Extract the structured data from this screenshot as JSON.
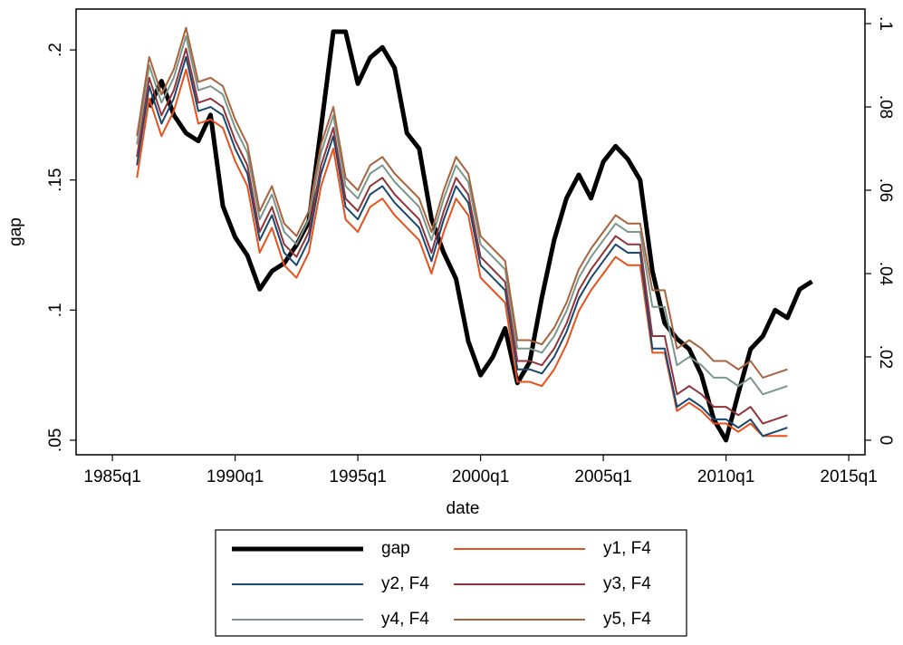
{
  "chart_data": {
    "type": "line",
    "x_label": "date",
    "y_label": "gap",
    "x": [
      1986,
      1986.5,
      1987,
      1987.5,
      1988,
      1988.5,
      1989,
      1989.5,
      1990,
      1990.5,
      1991,
      1991.5,
      1992,
      1992.5,
      1993,
      1993.5,
      1994,
      1994.5,
      1995,
      1995.5,
      1996,
      1996.5,
      1997,
      1997.5,
      1998,
      1998.5,
      1999,
      1999.5,
      2000,
      2000.5,
      2001,
      2001.5,
      2002,
      2002.5,
      2003,
      2003.5,
      2004,
      2004.5,
      2005,
      2005.5,
      2006,
      2006.5,
      2007,
      2007.5,
      2008,
      2008.5,
      2009,
      2009.5,
      2010,
      2010.5,
      2011,
      2011.5,
      2012,
      2012.5,
      2013,
      2013.5
    ],
    "series": [
      {
        "name": "gap",
        "color": "#000000",
        "width": 5,
        "values": [
          null,
          0.178,
          0.188,
          0.175,
          0.168,
          0.165,
          0.175,
          0.14,
          0.128,
          0.121,
          0.108,
          0.115,
          0.118,
          0.125,
          0.134,
          0.17,
          0.207,
          0.207,
          0.187,
          0.197,
          0.201,
          0.193,
          0.168,
          0.162,
          0.135,
          0.122,
          0.112,
          0.088,
          0.075,
          0.082,
          0.093,
          0.072,
          0.08,
          0.105,
          0.127,
          0.143,
          0.152,
          0.143,
          0.157,
          0.163,
          0.158,
          0.15,
          0.115,
          0.095,
          0.089,
          0.085,
          0.075,
          0.058,
          0.05,
          0.068,
          0.085,
          0.09,
          0.1,
          0.097,
          0.108,
          0.111
        ]
      },
      {
        "name": "y1, F4",
        "color": "#e8501c",
        "width": 2,
        "axis": "y2",
        "values": [
          0.063,
          0.082,
          0.073,
          0.079,
          0.089,
          0.076,
          0.077,
          0.075,
          0.067,
          0.061,
          0.045,
          0.051,
          0.042,
          0.039,
          0.045,
          0.061,
          0.07,
          0.053,
          0.05,
          0.056,
          0.058,
          0.054,
          0.051,
          0.048,
          0.04,
          0.05,
          0.058,
          0.054,
          0.039,
          0.036,
          0.033,
          0.014,
          0.014,
          0.013,
          0.017,
          0.023,
          0.031,
          0.036,
          0.04,
          0.044,
          0.042,
          0.042,
          0.021,
          0.021,
          0.007,
          0.009,
          0.007,
          0.004,
          0.004,
          0.002,
          0.004,
          0.001,
          0.001,
          0.001,
          null,
          null
        ]
      },
      {
        "name": "y2, F4",
        "color": "#1a476f",
        "width": 2,
        "axis": "y2",
        "values": [
          0.066,
          0.085,
          0.076,
          0.082,
          0.092,
          0.079,
          0.08,
          0.078,
          0.07,
          0.064,
          0.048,
          0.054,
          0.045,
          0.042,
          0.048,
          0.064,
          0.073,
          0.056,
          0.053,
          0.059,
          0.061,
          0.057,
          0.054,
          0.051,
          0.043,
          0.053,
          0.061,
          0.057,
          0.042,
          0.039,
          0.036,
          0.017,
          0.017,
          0.016,
          0.02,
          0.026,
          0.034,
          0.039,
          0.043,
          0.047,
          0.045,
          0.045,
          0.022,
          0.022,
          0.008,
          0.01,
          0.008,
          0.005,
          0.005,
          0.003,
          0.005,
          0.001,
          0.002,
          0.003,
          null,
          null
        ]
      },
      {
        "name": "y3, F4",
        "color": "#90353b",
        "width": 2,
        "axis": "y2",
        "values": [
          0.068,
          0.087,
          0.078,
          0.084,
          0.094,
          0.081,
          0.082,
          0.08,
          0.072,
          0.066,
          0.05,
          0.056,
          0.047,
          0.044,
          0.05,
          0.066,
          0.075,
          0.058,
          0.055,
          0.061,
          0.063,
          0.059,
          0.056,
          0.053,
          0.045,
          0.055,
          0.063,
          0.059,
          0.044,
          0.041,
          0.038,
          0.019,
          0.019,
          0.018,
          0.022,
          0.028,
          0.036,
          0.041,
          0.045,
          0.049,
          0.047,
          0.047,
          0.025,
          0.025,
          0.011,
          0.013,
          0.011,
          0.008,
          0.008,
          0.006,
          0.008,
          0.004,
          0.005,
          0.006,
          null,
          null
        ]
      },
      {
        "name": "y4, F4",
        "color": "#7a978c",
        "width": 2,
        "axis": "y2",
        "values": [
          0.071,
          0.09,
          0.081,
          0.087,
          0.097,
          0.084,
          0.085,
          0.083,
          0.075,
          0.069,
          0.053,
          0.059,
          0.05,
          0.047,
          0.053,
          0.069,
          0.078,
          0.061,
          0.058,
          0.064,
          0.066,
          0.062,
          0.059,
          0.056,
          0.048,
          0.058,
          0.066,
          0.062,
          0.047,
          0.044,
          0.041,
          0.022,
          0.022,
          0.021,
          0.025,
          0.031,
          0.039,
          0.044,
          0.048,
          0.052,
          0.05,
          0.05,
          0.032,
          0.032,
          0.018,
          0.02,
          0.018,
          0.015,
          0.015,
          0.013,
          0.015,
          0.011,
          0.012,
          0.013,
          null,
          null
        ]
      },
      {
        "name": "y5, F4",
        "color": "#a8633c",
        "width": 2,
        "axis": "y2",
        "values": [
          0.073,
          0.092,
          0.083,
          0.089,
          0.099,
          0.086,
          0.087,
          0.085,
          0.077,
          0.071,
          0.055,
          0.061,
          0.052,
          0.049,
          0.055,
          0.071,
          0.08,
          0.063,
          0.06,
          0.066,
          0.068,
          0.064,
          0.061,
          0.058,
          0.05,
          0.06,
          0.068,
          0.064,
          0.049,
          0.046,
          0.043,
          0.024,
          0.024,
          0.023,
          0.027,
          0.033,
          0.041,
          0.046,
          0.05,
          0.054,
          0.052,
          0.052,
          0.036,
          0.036,
          0.022,
          0.024,
          0.022,
          0.019,
          0.019,
          0.017,
          0.019,
          0.015,
          0.016,
          0.017,
          null,
          null
        ]
      }
    ],
    "xlim": [
      1983.52,
      2015.66
    ],
    "xticks": [
      {
        "value": 1985,
        "label": "1985q1"
      },
      {
        "value": 1990,
        "label": "1990q1"
      },
      {
        "value": 1995,
        "label": "1995q1"
      },
      {
        "value": 2000,
        "label": "2000q1"
      },
      {
        "value": 2005,
        "label": "2005q1"
      },
      {
        "value": 2010,
        "label": "2010q1"
      },
      {
        "value": 2015,
        "label": "2015q1"
      }
    ],
    "ylim": [
      0.0444,
      0.2157
    ],
    "yticks": [
      {
        "value": 0.05,
        "label": ".05"
      },
      {
        "value": 0.1,
        "label": ".1"
      },
      {
        "value": 0.15,
        "label": ".15"
      },
      {
        "value": 0.2,
        "label": ".2"
      }
    ],
    "y2lim": [
      -0.0035,
      0.1035
    ],
    "y2ticks": [
      0,
      {
        "value": 0.02,
        "label": ".02"
      },
      {
        "value": 0.04,
        "label": ".04"
      },
      {
        "value": 0.06,
        "label": ".06"
      },
      {
        "value": 0.08,
        "label": ".08"
      },
      {
        "value": 0.1,
        "label": ".1"
      }
    ],
    "legend": "bottom"
  }
}
